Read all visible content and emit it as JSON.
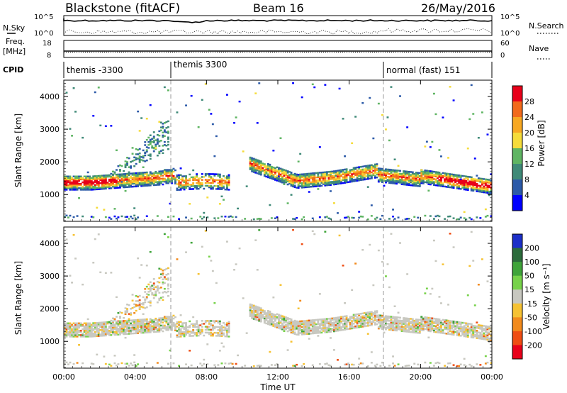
{
  "header": {
    "title": "Blackstone (fitACF)",
    "beam": "Beam 16",
    "date": "26/May/2016"
  },
  "left_labels": {
    "nsky": "N.Sky",
    "freq": "Freq.",
    "freq_unit": "[MHz]",
    "cpid": "CPID"
  },
  "right_labels": {
    "nsearch": "N.Search",
    "nave": "Nave"
  },
  "summary_axes": {
    "nsky_ticks_left": [
      "10^5",
      "10^0"
    ],
    "nsky_ticks_right": [
      "10^5",
      "10^0"
    ],
    "freq_ticks_left": [
      "18",
      "8"
    ],
    "nave_ticks_right": [
      "60",
      "0"
    ]
  },
  "cpid": [
    {
      "label": "themis -3300",
      "start_hour": 0
    },
    {
      "label": "themis 3300",
      "start_hour": 6
    },
    {
      "label": "normal (fast) 151",
      "start_hour": 18
    }
  ],
  "chart_data": [
    {
      "type": "heatmap",
      "panel": "power",
      "ylabel": "Slant Range [km]",
      "ylim": [
        180,
        4500
      ],
      "y_ticks": [
        "1000",
        "2000",
        "3000",
        "4000"
      ],
      "xlim_hours": [
        0,
        24
      ],
      "colorbar_label": "Power [dB]",
      "colorbar_ticks": [
        "4",
        "8",
        "12",
        "16",
        "20",
        "24",
        "28"
      ],
      "colors": [
        "#0000ff",
        "#2c5aa8",
        "#3f8a78",
        "#5fb563",
        "#f5dc3b",
        "#f7a823",
        "#f26a1c",
        "#e8001a"
      ],
      "bands": [
        {
          "name": "main echo",
          "range_km": [
            1150,
            1750
          ],
          "hours": [
            0,
            24
          ]
        },
        {
          "name": "rising arc",
          "range_km": [
            1500,
            3300
          ],
          "hours": [
            2.5,
            6
          ]
        }
      ]
    },
    {
      "type": "heatmap",
      "panel": "velocity",
      "ylabel": "Slant Range [km]",
      "ylim": [
        180,
        4500
      ],
      "y_ticks": [
        "1000",
        "2000",
        "3000",
        "4000"
      ],
      "xlim_hours": [
        0,
        24
      ],
      "xlabel": "Time UT",
      "x_ticks": [
        "00:00",
        "04:00",
        "08:00",
        "12:00",
        "16:00",
        "20:00",
        "00:00"
      ],
      "colorbar_label": "Velocity [m s⁻¹]",
      "colorbar_ticks": [
        "200",
        "100",
        "50",
        "15",
        "-15",
        "-50",
        "-100",
        "-200"
      ],
      "colors": [
        "#1c2fc8",
        "#2c6c3c",
        "#3fa43a",
        "#77d24a",
        "#c8c8c0",
        "#f6c233",
        "#f28a1c",
        "#ef4d13",
        "#e8001a"
      ]
    }
  ]
}
